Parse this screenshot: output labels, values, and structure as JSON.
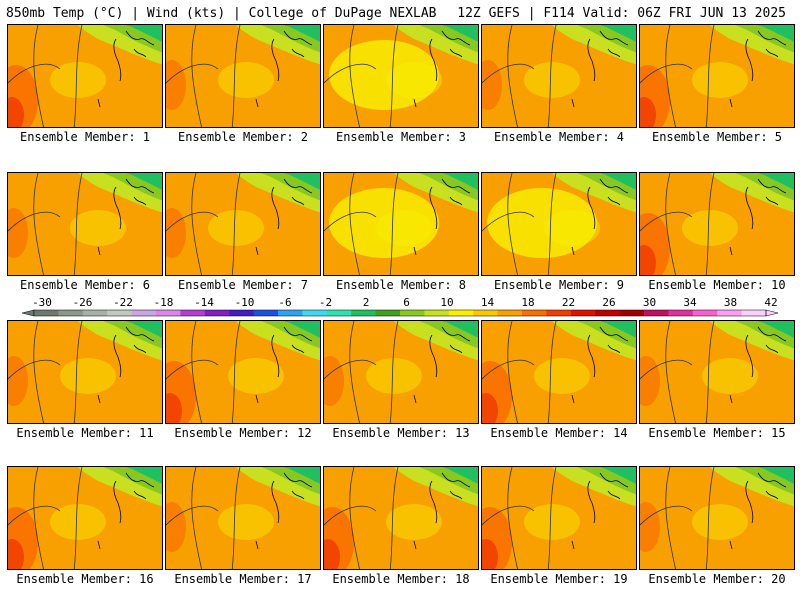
{
  "header": {
    "left": "850mb Temp (°C) | Wind (kts) | College of DuPage NEXLAB",
    "right": "12Z GEFS | F114 Valid: 06Z FRI JUN 13 2025"
  },
  "panels": [
    {
      "label": "Ensemble Member: 1",
      "warm": "west"
    },
    {
      "label": "Ensemble Member: 2",
      "warm": "mid"
    },
    {
      "label": "Ensemble Member: 3",
      "warm": "cool"
    },
    {
      "label": "Ensemble Member: 4",
      "warm": "mid"
    },
    {
      "label": "Ensemble Member: 5",
      "warm": "west"
    },
    {
      "label": "Ensemble Member: 6",
      "warm": "mid"
    },
    {
      "label": "Ensemble Member: 7",
      "warm": "mid"
    },
    {
      "label": "Ensemble Member: 8",
      "warm": "cool"
    },
    {
      "label": "Ensemble Member: 9",
      "warm": "cool"
    },
    {
      "label": "Ensemble Member: 10",
      "warm": "west"
    },
    {
      "label": "Ensemble Member: 11",
      "warm": "mid"
    },
    {
      "label": "Ensemble Member: 12",
      "warm": "west"
    },
    {
      "label": "Ensemble Member: 13",
      "warm": "mid"
    },
    {
      "label": "Ensemble Member: 14",
      "warm": "west"
    },
    {
      "label": "Ensemble Member: 15",
      "warm": "mid"
    },
    {
      "label": "Ensemble Member: 16",
      "warm": "west"
    },
    {
      "label": "Ensemble Member: 17",
      "warm": "mid"
    },
    {
      "label": "Ensemble Member: 18",
      "warm": "west"
    },
    {
      "label": "Ensemble Member: 19",
      "warm": "west"
    },
    {
      "label": "Ensemble Member: 20",
      "warm": "mid"
    }
  ],
  "colorbar": {
    "labels": [
      "-30",
      "-26",
      "-22",
      "-18",
      "-14",
      "-10",
      "-6",
      "-2",
      "2",
      "6",
      "10",
      "14",
      "18",
      "22",
      "26",
      "30",
      "34",
      "38",
      "42"
    ],
    "colors": [
      "#6e7a6e",
      "#8c968c",
      "#a8b0a8",
      "#c0c8c0",
      "#c8a8e0",
      "#d888e8",
      "#b040d0",
      "#8020c0",
      "#4020c0",
      "#2050e0",
      "#30a0f0",
      "#40d8f0",
      "#30e0b0",
      "#20c060",
      "#40a020",
      "#88c820",
      "#c8e020",
      "#f8f000",
      "#f8c800",
      "#f8a000",
      "#f87000",
      "#f04000",
      "#e01000",
      "#c00000",
      "#a00000",
      "#c01060",
      "#e030a0",
      "#f860d0",
      "#f8a0f0",
      "#f8d0f8"
    ]
  },
  "legend_colors": {
    "t10": "#20c060",
    "t12": "#88c820",
    "t14": "#c8e020",
    "t16": "#f8f000",
    "t18": "#f8c800",
    "t20": "#f8a000",
    "t22": "#f87000",
    "t24": "#f04000",
    "t26": "#e01000"
  }
}
